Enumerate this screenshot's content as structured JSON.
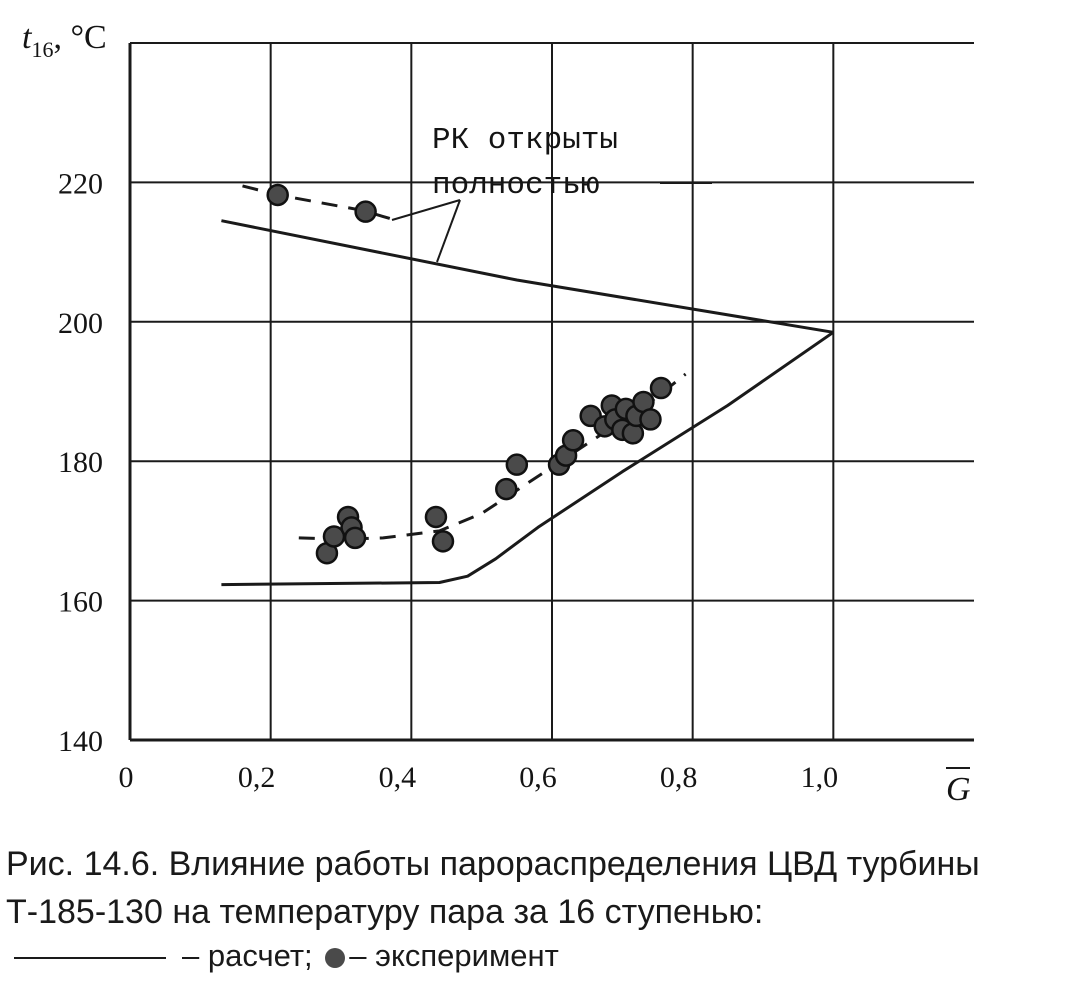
{
  "chart_data": {
    "type": "line",
    "title": "",
    "ylabel_main": "t",
    "ylabel_sub": "16",
    "ylabel_unit": ", °C",
    "xlabel": "G",
    "xlim": [
      0,
      1.2
    ],
    "ylim": [
      140,
      240
    ],
    "x_ticks": [
      0,
      0.2,
      0.4,
      0.6,
      0.8,
      1.0
    ],
    "x_tick_labels": [
      "0",
      "0,2",
      "0,4",
      "0,6",
      "0,8",
      "1,0"
    ],
    "y_ticks": [
      140,
      160,
      180,
      200,
      220
    ],
    "y_tick_labels": [
      "140",
      "160",
      "180",
      "200",
      "220"
    ],
    "grid": true,
    "annotation": [
      "РК открыты",
      "полностью"
    ],
    "series": [
      {
        "style": "solid",
        "role": "calc-upper",
        "points": [
          [
            0.13,
            214.5
          ],
          [
            0.55,
            206
          ],
          [
            1.0,
            198.5
          ]
        ]
      },
      {
        "style": "solid",
        "role": "calc-lower",
        "points": [
          [
            0.13,
            162.3
          ],
          [
            0.44,
            162.6
          ],
          [
            0.48,
            163.5
          ],
          [
            0.52,
            166
          ],
          [
            0.58,
            170.5
          ],
          [
            0.7,
            178.5
          ],
          [
            0.85,
            188
          ],
          [
            1.0,
            198.5
          ]
        ]
      },
      {
        "style": "dashed",
        "role": "exp-upper",
        "points": [
          [
            0.16,
            219.5
          ],
          [
            0.21,
            218.2
          ],
          [
            0.33,
            216
          ],
          [
            0.38,
            214.5
          ]
        ]
      },
      {
        "style": "dashed",
        "role": "exp-lower",
        "points": [
          [
            0.24,
            169
          ],
          [
            0.3,
            168.8
          ],
          [
            0.36,
            169
          ],
          [
            0.44,
            170
          ],
          [
            0.5,
            172.5
          ],
          [
            0.56,
            176.5
          ],
          [
            0.62,
            180.5
          ],
          [
            0.68,
            184.5
          ],
          [
            0.74,
            188.5
          ],
          [
            0.79,
            192.5
          ]
        ]
      },
      {
        "style": "markers",
        "role": "experiment",
        "points": [
          [
            0.21,
            218.2
          ],
          [
            0.335,
            215.8
          ],
          [
            0.28,
            166.8
          ],
          [
            0.29,
            169.2
          ],
          [
            0.31,
            172
          ],
          [
            0.315,
            170.5
          ],
          [
            0.32,
            169
          ],
          [
            0.435,
            172
          ],
          [
            0.445,
            168.5
          ],
          [
            0.535,
            176
          ],
          [
            0.55,
            179.5
          ],
          [
            0.61,
            179.5
          ],
          [
            0.62,
            180.8
          ],
          [
            0.63,
            183
          ],
          [
            0.655,
            186.5
          ],
          [
            0.675,
            185
          ],
          [
            0.685,
            188
          ],
          [
            0.69,
            186
          ],
          [
            0.7,
            184.5
          ],
          [
            0.705,
            187.5
          ],
          [
            0.715,
            184
          ],
          [
            0.72,
            186.5
          ],
          [
            0.73,
            188.5
          ],
          [
            0.74,
            186
          ],
          [
            0.755,
            190.5
          ]
        ]
      }
    ]
  },
  "caption": {
    "line1": "Рис. 14.6. Влияние работы парораспределения ЦВД турбины",
    "line2": "Т-185-130 на температуру пара за 16 ступенью:",
    "legend_calc": "– расчет;",
    "legend_exp": "– эксперимент"
  },
  "colors": {
    "ink": "#1a1a1a",
    "grid": "#1a1a1a",
    "marker_fill": "#4a4a4a",
    "marker_edge": "#111111"
  }
}
